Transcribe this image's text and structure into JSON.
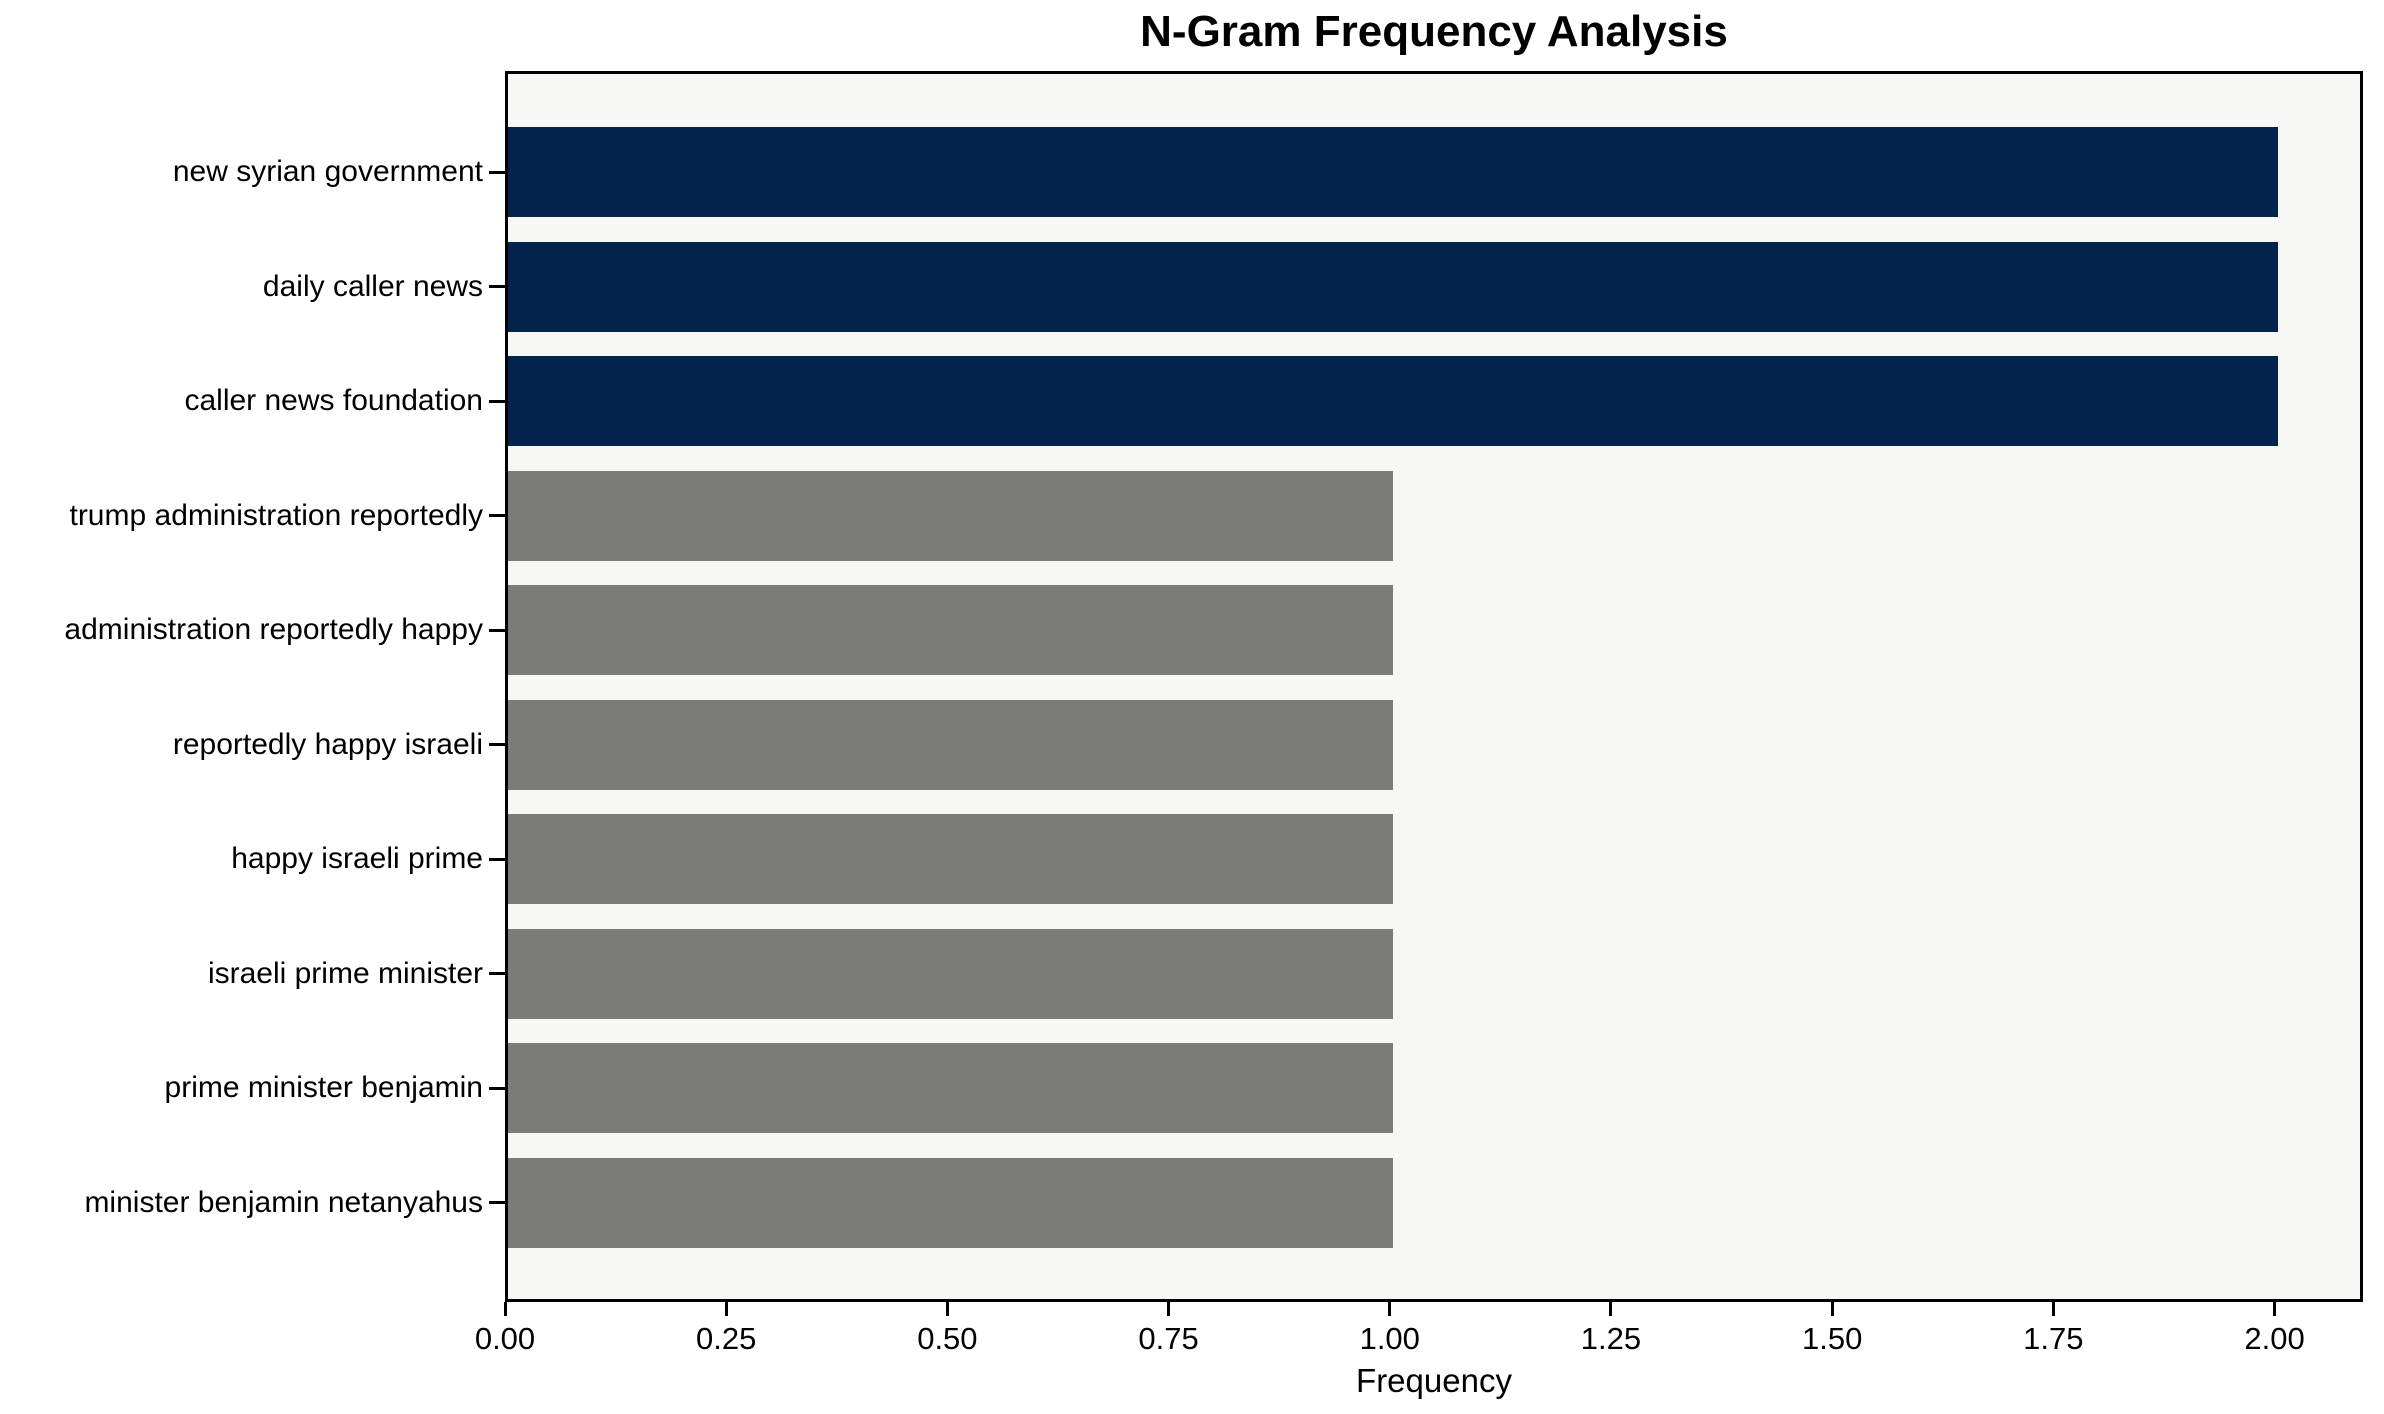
{
  "chart_data": {
    "type": "bar",
    "orientation": "horizontal",
    "title": "N-Gram Frequency Analysis",
    "xlabel": "Frequency",
    "ylabel": "",
    "categories": [
      "new syrian government",
      "daily caller news",
      "caller news foundation",
      "trump administration reportedly",
      "administration reportedly happy",
      "reportedly happy israeli",
      "happy israeli prime",
      "israeli prime minister",
      "prime minister benjamin",
      "minister benjamin netanyahus"
    ],
    "values": [
      2,
      2,
      2,
      1,
      1,
      1,
      1,
      1,
      1,
      1
    ],
    "bar_colors": [
      "#02234c",
      "#02234c",
      "#02234c",
      "#7b7b78",
      "#7b7b78",
      "#7b7b78",
      "#7b7b78",
      "#7b7b78",
      "#7b7b78",
      "#7b7b78"
    ],
    "x_ticks": [
      "0.00",
      "0.25",
      "0.50",
      "0.75",
      "1.00",
      "1.25",
      "1.50",
      "1.75",
      "2.00"
    ],
    "x_tick_values": [
      0,
      0.25,
      0.5,
      0.75,
      1.0,
      1.25,
      1.5,
      1.75,
      2.0
    ],
    "xlim": [
      0,
      2.1
    ],
    "grid": false,
    "legend": null,
    "colors": {
      "highlight_bar": "#02234c",
      "default_bar": "#7b7b78",
      "plot_background": "#f7f7f6",
      "figure_background": "#ffffff",
      "axis": "#000000",
      "text": "#000000"
    }
  }
}
